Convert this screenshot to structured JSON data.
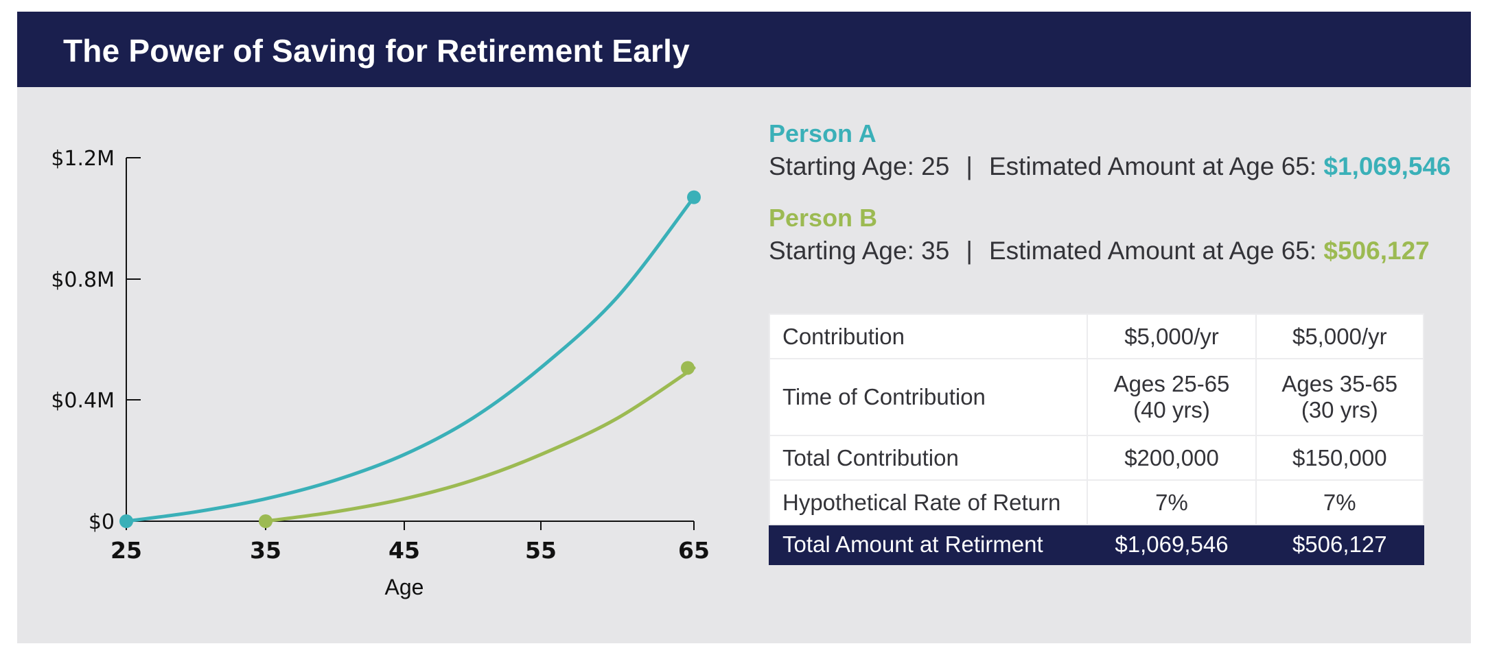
{
  "header": {
    "title": "The Power of Saving for Retirement Early"
  },
  "colors": {
    "navy": "#1a1f4e",
    "background": "#e6e6e8",
    "person_a": "#3ab0b8",
    "person_b": "#9cba52",
    "text": "#333338"
  },
  "persons": [
    {
      "name": "Person A",
      "starting_age_label": "Starting Age: 25",
      "separator": "|",
      "estimate_label": "Estimated Amount at Age 65:",
      "estimate_value": "$1,069,546"
    },
    {
      "name": "Person B",
      "starting_age_label": "Starting Age: 35",
      "separator": "|",
      "estimate_label": "Estimated Amount at Age 65:",
      "estimate_value": "$506,127"
    }
  ],
  "table": {
    "rows": [
      {
        "label": "Contribution",
        "a": "$5,000/yr",
        "b": "$5,000/yr"
      },
      {
        "label": "Time of Contribution",
        "a_line1": "Ages 25-65",
        "a_line2": "(40 yrs)",
        "b_line1": "Ages 35-65",
        "b_line2": "(30 yrs)"
      },
      {
        "label": "Total Contribution",
        "a": "$200,000",
        "b": "$150,000"
      },
      {
        "label": "Hypothetical Rate of Return",
        "a": "7%",
        "b": "7%"
      }
    ],
    "total": {
      "label": "Total Amount at Retirment",
      "a": "$1,069,546",
      "b": "$506,127"
    }
  },
  "chart_data": {
    "type": "line",
    "title": "The Power of Saving for Retirement Early",
    "xlabel": "Age",
    "ylabel": "",
    "x_ticks": [
      "25",
      "35",
      "45",
      "55",
      "65"
    ],
    "y_ticks": [
      "$0",
      "$0.4M",
      "$0.8M",
      "$1.2M"
    ],
    "xlim": [
      25,
      65
    ],
    "ylim": [
      0,
      1200000
    ],
    "grid": false,
    "legend": "none (series identified by Person A / Person B text)",
    "series": [
      {
        "name": "Person A",
        "color": "#3ab0b8",
        "x": [
          25,
          30,
          35,
          40,
          45,
          50,
          55,
          60,
          65
        ],
        "values": [
          0,
          31000,
          74000,
          135000,
          220000,
          340000,
          507000,
          740000,
          1069546
        ]
      },
      {
        "name": "Person B",
        "color": "#9cba52",
        "x": [
          35,
          40,
          45,
          50,
          55,
          60,
          65
        ],
        "values": [
          0,
          31000,
          74000,
          135000,
          220000,
          340000,
          506127
        ]
      }
    ]
  }
}
